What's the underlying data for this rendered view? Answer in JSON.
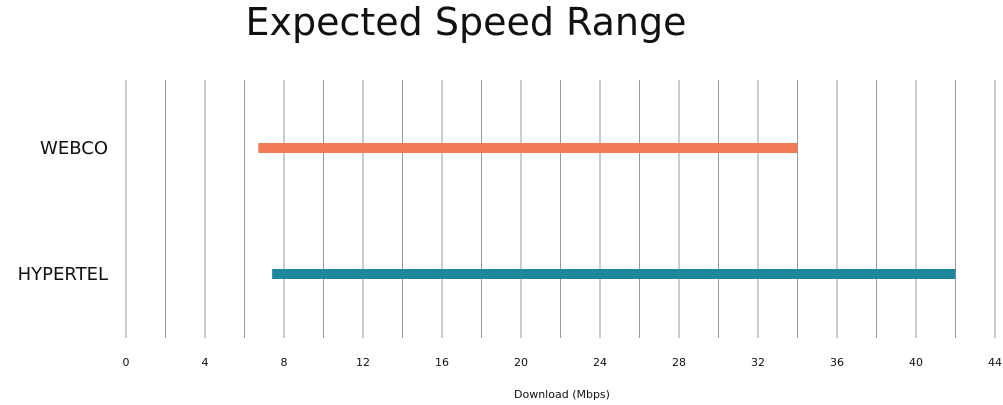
{
  "chart_data": {
    "type": "bar",
    "orientation": "horizontal-range",
    "title": "Expected Speed Range",
    "xlabel": "Download (Mbps)",
    "ylabel": "",
    "xlim": [
      0,
      44
    ],
    "xticks": [
      0,
      4,
      8,
      12,
      16,
      20,
      24,
      28,
      32,
      36,
      40,
      44
    ],
    "grid_step": 2,
    "grid": true,
    "categories": [
      "WEBCO",
      "HYPERTEL"
    ],
    "series": [
      {
        "category": "WEBCO",
        "start": 6.7,
        "end": 34,
        "color": "#F07B56"
      },
      {
        "category": "HYPERTEL",
        "start": 7.4,
        "end": 42,
        "color": "#1F879C"
      }
    ]
  }
}
